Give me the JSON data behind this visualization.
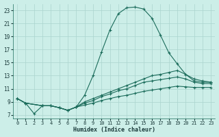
{
  "xlabel": "Humidex (Indice chaleur)",
  "bg_color": "#cceee8",
  "grid_color": "#aad4ce",
  "line_color": "#1a6b5a",
  "xlim": [
    -0.5,
    23.5
  ],
  "ylim": [
    6.5,
    24.0
  ],
  "xticks": [
    0,
    1,
    2,
    3,
    4,
    5,
    6,
    7,
    8,
    9,
    10,
    11,
    12,
    13,
    14,
    15,
    16,
    17,
    18,
    19,
    20,
    21,
    22,
    23
  ],
  "yticks": [
    7,
    9,
    11,
    13,
    15,
    17,
    19,
    21,
    23
  ],
  "series": [
    {
      "x": [
        0,
        1,
        2,
        3,
        4,
        5,
        6,
        7,
        8,
        9,
        10,
        11,
        12,
        13,
        14,
        15,
        16,
        17,
        18,
        19,
        20,
        21,
        22,
        23
      ],
      "y": [
        9.5,
        8.8,
        7.2,
        8.4,
        8.4,
        8.1,
        7.7,
        8.2,
        10.0,
        13.0,
        16.6,
        20.0,
        22.5,
        23.4,
        23.5,
        23.2,
        21.8,
        19.2,
        16.5,
        14.8,
        13.2,
        12.2,
        12.0,
        12.0
      ]
    },
    {
      "x": [
        0,
        1,
        3,
        4,
        5,
        6,
        7,
        8,
        9,
        10,
        11,
        12,
        13,
        14,
        15,
        16,
        17,
        18,
        19,
        20,
        21,
        22,
        23
      ],
      "y": [
        9.5,
        8.8,
        8.4,
        8.4,
        8.1,
        7.7,
        8.2,
        9.0,
        9.5,
        10.0,
        10.5,
        11.0,
        11.5,
        12.0,
        12.5,
        13.0,
        13.2,
        13.5,
        13.8,
        13.2,
        12.5,
        12.2,
        12.0
      ]
    },
    {
      "x": [
        0,
        1,
        3,
        4,
        5,
        6,
        7,
        8,
        9,
        10,
        11,
        12,
        13,
        14,
        15,
        16,
        17,
        18,
        19,
        20,
        21,
        22,
        23
      ],
      "y": [
        9.5,
        8.8,
        8.4,
        8.4,
        8.1,
        7.7,
        8.2,
        8.8,
        9.2,
        9.8,
        10.2,
        10.7,
        11.0,
        11.5,
        12.0,
        12.2,
        12.4,
        12.6,
        12.8,
        12.5,
        12.0,
        11.8,
        11.8
      ]
    },
    {
      "x": [
        0,
        1,
        3,
        4,
        5,
        6,
        7,
        8,
        9,
        10,
        11,
        12,
        13,
        14,
        15,
        16,
        17,
        18,
        19,
        20,
        21,
        22,
        23
      ],
      "y": [
        9.5,
        8.8,
        8.4,
        8.4,
        8.1,
        7.7,
        8.2,
        8.5,
        8.8,
        9.2,
        9.5,
        9.8,
        10.0,
        10.3,
        10.6,
        10.8,
        11.0,
        11.2,
        11.4,
        11.3,
        11.2,
        11.2,
        11.2
      ]
    }
  ]
}
